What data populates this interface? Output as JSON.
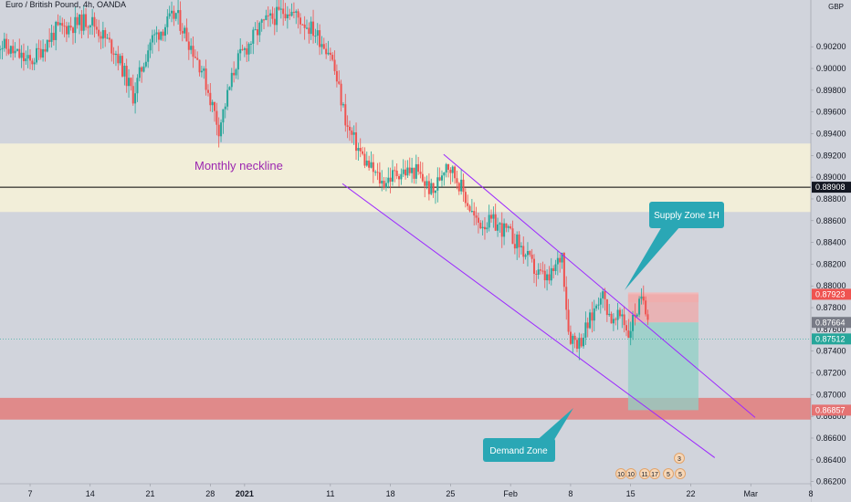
{
  "header": {
    "symbol_title": "Euro / British Pound, 4h, OANDA",
    "currency": "GBP"
  },
  "colors": {
    "background": "#d1d4dc",
    "up_candle": "#26a69a",
    "down_candle": "#ef5350",
    "channel": "#9c27ff",
    "neckline": "#000000",
    "label_purple": "#9c27b0",
    "callout_teal": "#2aa7b5",
    "supply_zone": "#f3b7b7",
    "demand_zone": "#e08a8a",
    "neckline_zone": "#f2eed9",
    "target_zone": "#8fd0c6",
    "last_price_line": "#26a69a"
  },
  "chart_data": {
    "type": "candlestick",
    "title": "Euro / British Pound, 4h, OANDA",
    "y_axis": {
      "range": [
        0.8618,
        0.9063
      ],
      "tick_labels": [
        "0.90200",
        "0.90000",
        "0.89800",
        "0.89600",
        "0.89400",
        "0.89200",
        "0.89000",
        "0.88800",
        "0.88600",
        "0.88400",
        "0.88200",
        "0.88000",
        "0.87800",
        "0.87600",
        "0.87400",
        "0.87200",
        "0.87000",
        "0.86800",
        "0.86600",
        "0.86400",
        "0.86200"
      ],
      "tick_values": [
        0.902,
        0.9,
        0.898,
        0.896,
        0.894,
        0.892,
        0.89,
        0.888,
        0.886,
        0.884,
        0.882,
        0.88,
        0.878,
        0.876,
        0.874,
        0.872,
        0.87,
        0.868,
        0.866,
        0.864,
        0.862
      ],
      "price_labels": [
        {
          "value": 0.88908,
          "text": "0.88908",
          "style": "neckline"
        },
        {
          "value": 0.87923,
          "text": "0.87923",
          "style": "supply"
        },
        {
          "value": 0.87664,
          "text": "0.87664",
          "style": "entry"
        },
        {
          "value": 0.87512,
          "text": "0.87512",
          "style": "last"
        },
        {
          "value": 0.86857,
          "text": "0.86857",
          "style": "target"
        }
      ]
    },
    "x_axis": {
      "tick_labels": [
        "7",
        "14",
        "21",
        "28",
        "2021",
        "11",
        "18",
        "25",
        "Feb",
        "8",
        "15",
        "22",
        "Mar",
        "8"
      ],
      "tick_days": [
        7,
        14,
        21,
        28,
        32,
        42,
        49,
        56,
        63,
        70,
        77,
        84,
        91,
        98
      ]
    },
    "zones": [
      {
        "name": "neckline-zone",
        "from": 0.8868,
        "to": 0.8931
      },
      {
        "name": "demand-zone",
        "from": 0.8677,
        "to": 0.8697
      },
      {
        "name": "supply-zone",
        "from": 0.8785,
        "to": 0.8794
      }
    ],
    "lines": {
      "neckline": 0.88908,
      "last_price": 0.87512,
      "channel_upper": [
        {
          "day": 55.2,
          "price": 0.8921
        },
        {
          "day": 91.5,
          "price": 0.8679
        }
      ],
      "channel_lower": [
        {
          "day": 43.4,
          "price": 0.8894
        },
        {
          "day": 86.8,
          "price": 0.8642
        }
      ]
    },
    "position_box": {
      "entry": 0.87664,
      "stop": 0.87923,
      "target": 0.86857,
      "from_day": 76.7,
      "to_day": 84.9
    },
    "price_path": [
      {
        "day": 3,
        "price": 0.9025
      },
      {
        "day": 7,
        "price": 0.9005
      },
      {
        "day": 10,
        "price": 0.9035
      },
      {
        "day": 14,
        "price": 0.9045
      },
      {
        "day": 17,
        "price": 0.9015
      },
      {
        "day": 19,
        "price": 0.8975
      },
      {
        "day": 21,
        "price": 0.9025
      },
      {
        "day": 24,
        "price": 0.905
      },
      {
        "day": 27,
        "price": 0.9
      },
      {
        "day": 29,
        "price": 0.8945
      },
      {
        "day": 31,
        "price": 0.9005
      },
      {
        "day": 34,
        "price": 0.904
      },
      {
        "day": 37,
        "price": 0.9055
      },
      {
        "day": 40,
        "price": 0.9035
      },
      {
        "day": 42,
        "price": 0.9015
      },
      {
        "day": 44,
        "price": 0.8945
      },
      {
        "day": 46,
        "price": 0.8915
      },
      {
        "day": 48,
        "price": 0.8895
      },
      {
        "day": 50,
        "price": 0.8905
      },
      {
        "day": 52,
        "price": 0.8905
      },
      {
        "day": 54,
        "price": 0.8885
      },
      {
        "day": 55.5,
        "price": 0.8915
      },
      {
        "day": 57,
        "price": 0.8895
      },
      {
        "day": 59,
        "price": 0.8858
      },
      {
        "day": 61,
        "price": 0.8858
      },
      {
        "day": 62.5,
        "price": 0.885
      },
      {
        "day": 64,
        "price": 0.8838
      },
      {
        "day": 66,
        "price": 0.8812
      },
      {
        "day": 67.5,
        "price": 0.8805
      },
      {
        "day": 69,
        "price": 0.883
      },
      {
        "day": 69.8,
        "price": 0.8755
      },
      {
        "day": 71,
        "price": 0.8748
      },
      {
        "day": 72.5,
        "price": 0.8772
      },
      {
        "day": 73.5,
        "price": 0.8795
      },
      {
        "day": 75,
        "price": 0.8765
      },
      {
        "day": 76,
        "price": 0.8775
      },
      {
        "day": 76.7,
        "price": 0.8755
      },
      {
        "day": 77.5,
        "price": 0.8775
      },
      {
        "day": 78.5,
        "price": 0.8788
      },
      {
        "day": 79,
        "price": 0.8775
      }
    ],
    "annotations": [
      {
        "text": "Monthly neckline",
        "color": "#9c27b0"
      },
      {
        "text": "Supply Zone 1H",
        "color": "#2aa7b5"
      },
      {
        "text": "Demand Zone",
        "color": "#2aa7b5"
      }
    ],
    "event_markers": [
      "10",
      "10",
      "11",
      "17",
      "5",
      "5",
      "3"
    ]
  }
}
